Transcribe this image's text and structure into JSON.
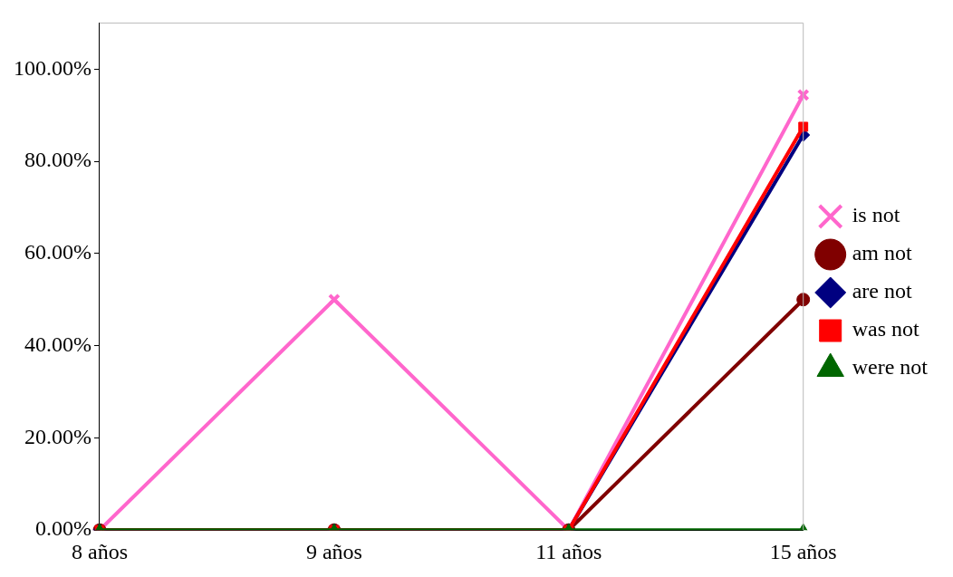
{
  "chart_data": {
    "type": "line",
    "categories": [
      "8 años",
      "9 años",
      "11 años",
      "15 años"
    ],
    "series": [
      {
        "name": "is not",
        "color": "#ff66cc",
        "marker": "cross",
        "values": [
          0,
          50,
          0,
          94.4
        ]
      },
      {
        "name": "am not",
        "color": "#800000",
        "marker": "circle",
        "values": [
          0,
          0,
          0,
          50
        ]
      },
      {
        "name": "are not",
        "color": "#000080",
        "marker": "diamond",
        "values": [
          0,
          0,
          0,
          85.7
        ]
      },
      {
        "name": "was not",
        "color": "#ff0000",
        "marker": "square",
        "values": [
          0,
          0,
          0,
          87.5
        ]
      },
      {
        "name": "were not",
        "color": "#006600",
        "marker": "triangle",
        "values": [
          0,
          0,
          0,
          0
        ]
      }
    ],
    "ylim": [
      0,
      110
    ],
    "yticks": [
      {
        "value": 0,
        "label": "0.00%"
      },
      {
        "value": 20,
        "label": "20.00%"
      },
      {
        "value": 40,
        "label": "40.00%"
      },
      {
        "value": 60,
        "label": "60.00%"
      },
      {
        "value": 80,
        "label": "80.00%"
      },
      {
        "value": 100,
        "label": "100.00%"
      }
    ],
    "grid": false,
    "legend": "right",
    "line_style": "solid"
  }
}
